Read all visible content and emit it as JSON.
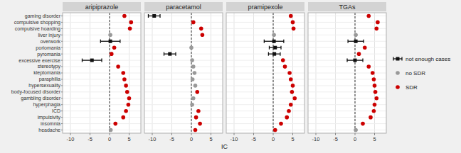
{
  "chart_data": {
    "type": "scatter",
    "orientation": "horizontal",
    "xlabel": "IC",
    "grid": true,
    "legend": "right",
    "xlim": [
      -12,
      8
    ],
    "xticks": [
      -10,
      -5,
      0,
      5
    ],
    "reference_x": 0,
    "categories": [
      "gaming disorder",
      "compulsive shopping",
      "compulsive hoarding",
      "liver injury",
      "overwork",
      "poriomania",
      "pyromania",
      "excessive exercise",
      "stereotypy",
      "kleptomania",
      "paraphilia",
      "hypersexuality",
      "body-focused disorder",
      "gambling disorder",
      "hyperphagia",
      "ICD",
      "impulsivity",
      "insomnia",
      "headache"
    ],
    "series": [
      {
        "name": "not enough cases",
        "color": "#111111",
        "marker": "square"
      },
      {
        "name": "no SDR",
        "color": "#999999",
        "marker": "circle"
      },
      {
        "name": "SDR",
        "color": "#cc0000",
        "marker": "circle"
      }
    ],
    "panels": [
      {
        "title": "aripiprazole",
        "series": [
          {
            "values": [
              null,
              null,
              null,
              null,
              0.2,
              null,
              null,
              -4.5,
              null,
              null,
              null,
              null,
              null,
              null,
              null,
              null,
              null,
              null,
              null
            ],
            "errors": [
              null,
              null,
              null,
              null,
              2.5,
              null,
              null,
              2.5,
              null,
              null,
              null,
              null,
              null,
              null,
              null,
              null,
              null,
              null,
              null
            ]
          },
          {
            "values": [
              null,
              null,
              null,
              0.2,
              null,
              null,
              null,
              null,
              null,
              null,
              null,
              null,
              null,
              null,
              null,
              null,
              null,
              null,
              0.3
            ]
          },
          {
            "values": [
              3.8,
              5.5,
              5.2,
              null,
              null,
              1.2,
              0.5,
              null,
              2.2,
              3.5,
              3.8,
              4.2,
              4.5,
              5.0,
              4.8,
              4.2,
              3.5,
              1.5,
              null
            ]
          }
        ]
      },
      {
        "title": "paracetamol",
        "series": [
          {
            "values": [
              -9.5,
              null,
              null,
              null,
              null,
              null,
              -5.5,
              null,
              null,
              null,
              null,
              null,
              null,
              null,
              null,
              null,
              null,
              null,
              null
            ],
            "errors": [
              1.5,
              null,
              null,
              null,
              null,
              null,
              1.5,
              null,
              null,
              null,
              null,
              null,
              null,
              null,
              null,
              null,
              null,
              null,
              null
            ]
          },
          {
            "values": [
              null,
              null,
              null,
              null,
              null,
              0.0,
              null,
              0.2,
              0.5,
              0.8,
              0.3,
              1.0,
              null,
              0.5,
              0.2,
              null,
              null,
              null,
              null
            ]
          },
          {
            "values": [
              null,
              0.5,
              2.5,
              2.8,
              null,
              null,
              null,
              null,
              null,
              null,
              null,
              null,
              1.5,
              null,
              null,
              1.8,
              1.2,
              2.2,
              1.0
            ]
          }
        ]
      },
      {
        "title": "pramipexole",
        "series": [
          {
            "values": [
              null,
              null,
              null,
              null,
              0.2,
              0.5,
              0.3,
              null,
              null,
              null,
              null,
              null,
              null,
              null,
              null,
              null,
              null,
              null,
              null
            ],
            "errors": [
              null,
              null,
              null,
              null,
              2.5,
              1.5,
              1.5,
              null,
              null,
              null,
              null,
              null,
              null,
              null,
              null,
              null,
              null,
              null,
              null
            ]
          },
          {
            "values": [
              null,
              null,
              null,
              0.2,
              null,
              null,
              null,
              null,
              null,
              null,
              null,
              null,
              null,
              null,
              null,
              null,
              null,
              null,
              null
            ]
          },
          {
            "values": [
              4.5,
              5.0,
              5.2,
              null,
              null,
              null,
              null,
              2.5,
              3.0,
              4.2,
              4.5,
              5.0,
              4.8,
              5.5,
              4.5,
              4.0,
              3.5,
              2.0,
              0.5
            ]
          }
        ]
      },
      {
        "title": "TGAs",
        "series": [
          {
            "values": [
              null,
              null,
              null,
              null,
              0.2,
              null,
              null,
              0.0,
              null,
              null,
              null,
              null,
              null,
              null,
              null,
              null,
              null,
              null,
              null
            ],
            "errors": [
              null,
              null,
              null,
              null,
              2.0,
              null,
              null,
              2.0,
              null,
              null,
              null,
              null,
              null,
              null,
              null,
              null,
              null,
              null,
              null
            ]
          },
          {
            "values": [
              null,
              null,
              null,
              0.2,
              null,
              null,
              null,
              null,
              null,
              null,
              null,
              null,
              null,
              null,
              null,
              null,
              null,
              null,
              0.2
            ]
          },
          {
            "values": [
              3.5,
              5.8,
              5.5,
              null,
              null,
              2.5,
              1.0,
              null,
              3.5,
              4.5,
              4.8,
              5.0,
              5.2,
              5.5,
              5.0,
              4.8,
              4.0,
              2.0,
              null
            ]
          }
        ]
      }
    ]
  }
}
